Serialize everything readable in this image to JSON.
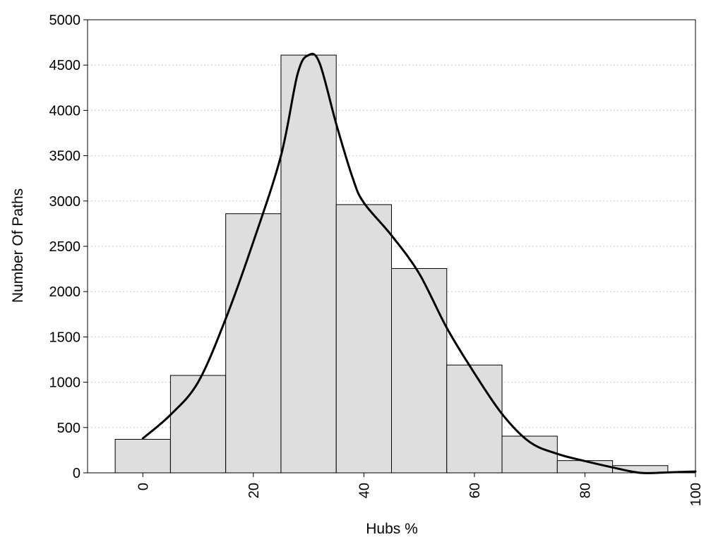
{
  "chart_data": {
    "type": "bar",
    "title": "",
    "xlabel": "Hubs %",
    "ylabel": "Number Of Paths",
    "xlim": [
      -10,
      100
    ],
    "ylim": [
      0,
      5000
    ],
    "x_ticks": [
      0,
      20,
      40,
      60,
      80,
      100
    ],
    "y_ticks": [
      0,
      500,
      1000,
      1500,
      2000,
      2500,
      3000,
      3500,
      4000,
      4500,
      5000
    ],
    "grid": "horizontal-dotted",
    "legend": "none",
    "bin_width": 10,
    "bins": [
      {
        "x": 0,
        "value": 370
      },
      {
        "x": 10,
        "value": 1075
      },
      {
        "x": 20,
        "value": 2860
      },
      {
        "x": 30,
        "value": 4610
      },
      {
        "x": 40,
        "value": 2960
      },
      {
        "x": 50,
        "value": 2255
      },
      {
        "x": 60,
        "value": 1190
      },
      {
        "x": 70,
        "value": 405
      },
      {
        "x": 80,
        "value": 135
      },
      {
        "x": 90,
        "value": 80
      }
    ],
    "density_curve": [
      [
        0,
        380
      ],
      [
        5,
        640
      ],
      [
        10,
        1000
      ],
      [
        15,
        1700
      ],
      [
        20,
        2550
      ],
      [
        25,
        3500
      ],
      [
        28,
        4400
      ],
      [
        30,
        4610
      ],
      [
        32,
        4520
      ],
      [
        35,
        3850
      ],
      [
        38,
        3250
      ],
      [
        40,
        2980
      ],
      [
        45,
        2620
      ],
      [
        50,
        2200
      ],
      [
        55,
        1600
      ],
      [
        60,
        1100
      ],
      [
        65,
        650
      ],
      [
        70,
        340
      ],
      [
        75,
        210
      ],
      [
        80,
        130
      ],
      [
        85,
        60
      ],
      [
        90,
        0
      ],
      [
        95,
        5
      ],
      [
        100,
        15
      ]
    ],
    "colors": {
      "bar_fill": "#dedede",
      "bar_stroke": "#000000",
      "curve": "#000000",
      "grid": "#c8c8c8"
    }
  }
}
